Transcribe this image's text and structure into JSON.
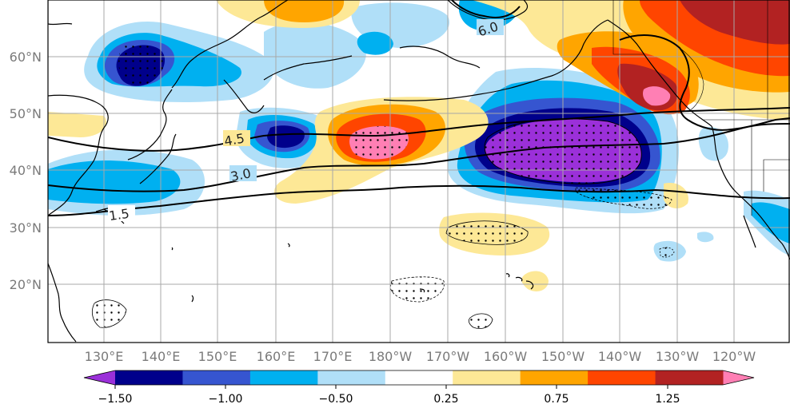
{
  "map": {
    "lat_labels": [
      "60°N",
      "50°N",
      "40°N",
      "30°N",
      "20°N"
    ],
    "lon_labels": [
      "130°E",
      "140°E",
      "150°E",
      "160°E",
      "170°E",
      "180°W",
      "170°W",
      "160°W",
      "150°W",
      "140°W",
      "130°W",
      "120°W"
    ],
    "contour_labels": [
      "4.5",
      "3.0",
      "1.5",
      "6.0"
    ]
  },
  "colorbar": {
    "colors": [
      "#9b30d9",
      "#00008b",
      "#3655d0",
      "#00b0f0",
      "#b0dff8",
      "#ffffff",
      "#fde896",
      "#ffa500",
      "#ff4500",
      "#b22222",
      "#ff7fb4"
    ],
    "tick_labels": [
      "−1.50",
      "−1.00",
      "−0.50",
      "0.25",
      "0.75",
      "1.25"
    ]
  }
}
